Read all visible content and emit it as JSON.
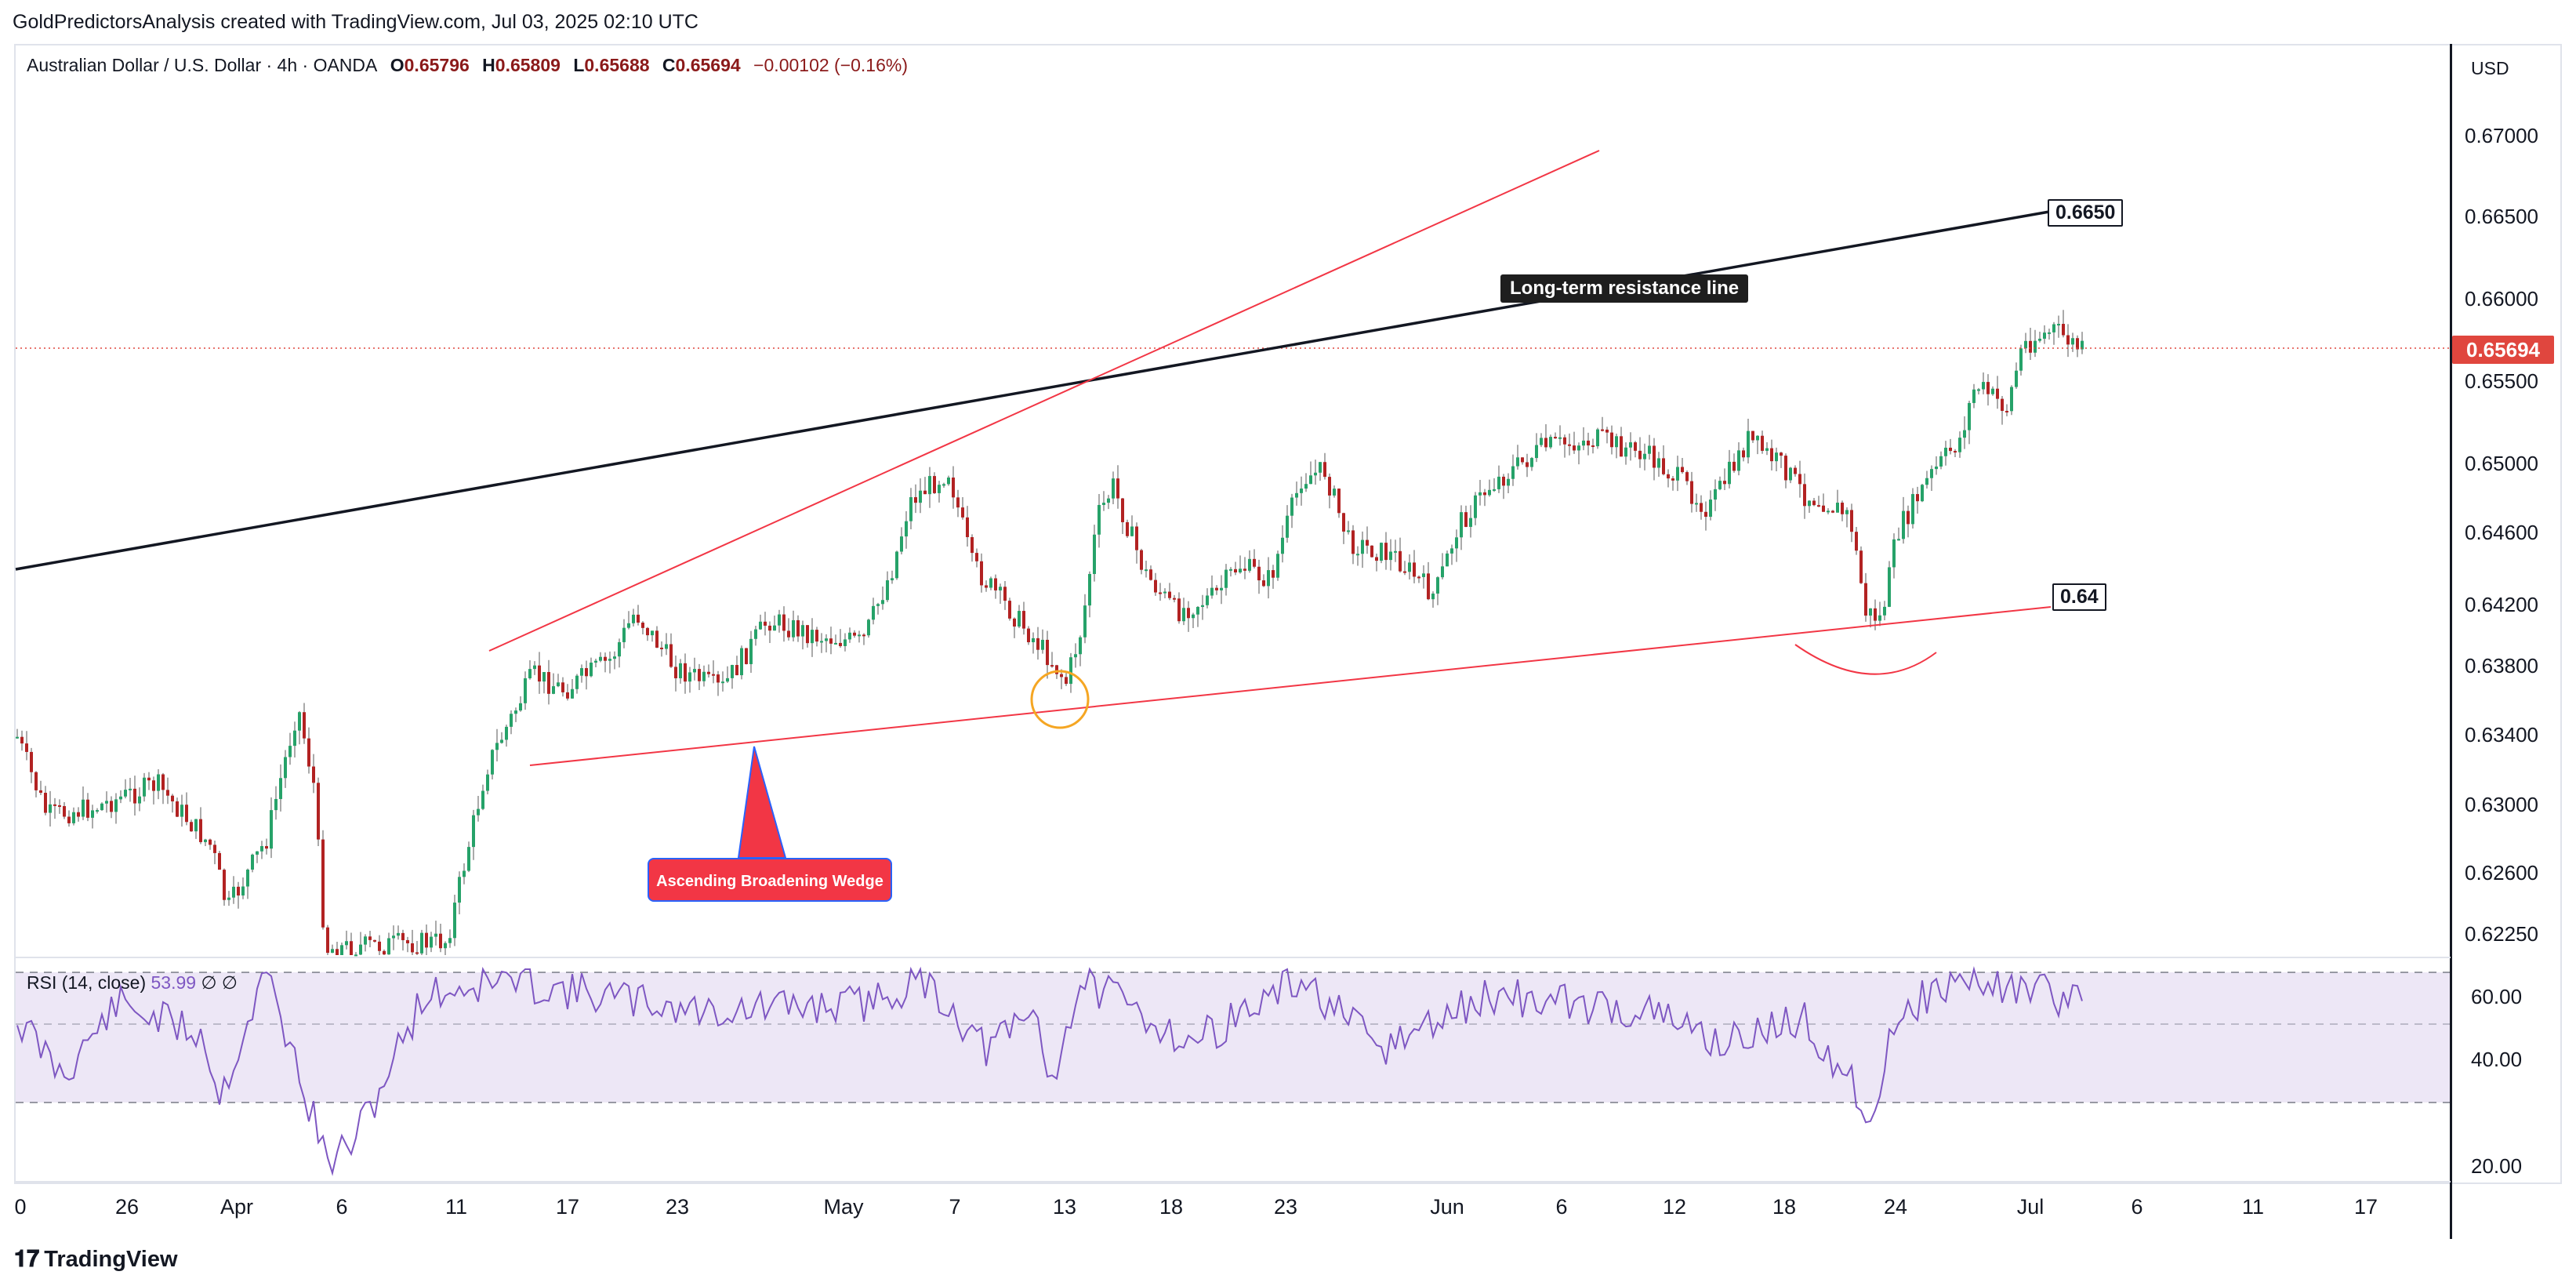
{
  "header": {
    "credit": "GoldPredictorsAnalysis created with TradingView.com, Jul 03, 2025 02:10 UTC"
  },
  "legend": {
    "symbol": "Australian Dollar / U.S. Dollar · 4h · OANDA",
    "o_label": "O",
    "o_value": "0.65796",
    "h_label": "H",
    "h_value": "0.65809",
    "l_label": "L",
    "l_value": "0.65688",
    "c_label": "C",
    "c_value": "0.65694",
    "change": "−0.00102 (−0.16%)"
  },
  "price_axis": {
    "currency": "USD",
    "labels": [
      "0.67000",
      "0.66500",
      "0.66000",
      "0.65500",
      "0.65000",
      "0.64600",
      "0.64200",
      "0.63800",
      "0.63400",
      "0.63000",
      "0.62600",
      "0.62250"
    ],
    "last_price": "0.65694",
    "last_price_color": "#e0463e"
  },
  "rsi": {
    "title": "RSI (14, close)",
    "value": "53.99",
    "extra1": "∅",
    "extra2": "∅",
    "axis_labels": [
      "60.00",
      "40.00",
      "20.00"
    ],
    "line_color": "#7e57c2",
    "band_color": "#ede7f6"
  },
  "time_axis": {
    "labels": [
      "0",
      "26",
      "Apr",
      "6",
      "11",
      "17",
      "23",
      "May",
      "7",
      "13",
      "18",
      "23",
      "Jun",
      "6",
      "12",
      "18",
      "24",
      "Jul",
      "6",
      "11",
      "17"
    ]
  },
  "annotations": {
    "resistance_label": "Long-term resistance line",
    "resistance_level": "0.6650",
    "support_level": "0.64",
    "pattern_label": "Ascending Broadening Wedge"
  },
  "colors": {
    "up_candle": "#26a269",
    "down_candle": "#b22222",
    "wedge_line": "#f23645",
    "resistance_line": "#131722",
    "highlight_circle": "#f5a623"
  },
  "footer": {
    "logo_text": "TradingView"
  }
}
